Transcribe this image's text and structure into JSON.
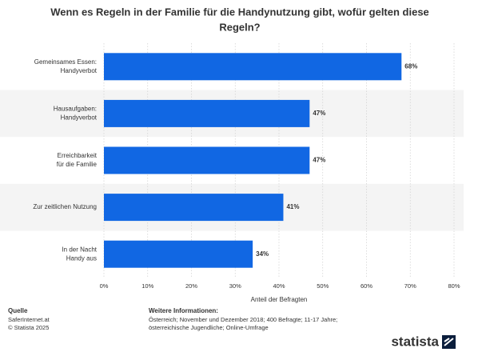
{
  "chart_data": {
    "type": "hbar",
    "title": [
      "Wenn es Regeln in der Familie für die Handynutzung gibt, wofür gelten diese",
      "Regeln?"
    ],
    "categories": [
      [
        "Gemeinsames Essen:",
        "Handyverbot"
      ],
      [
        "Hausaufgaben:",
        "Handyverbot"
      ],
      [
        "Erreichbarkeit",
        "für die Familie"
      ],
      [
        "Zur zeitlichen Nutzung"
      ],
      [
        "In der Nacht",
        "Handy aus"
      ]
    ],
    "values": [
      68,
      47,
      47,
      41,
      34
    ],
    "value_labels": [
      "68%",
      "47%",
      "47%",
      "41%",
      "34%"
    ],
    "color": "#1167e3",
    "xlim": [
      0,
      80
    ],
    "xticks": [
      {
        "value": 0,
        "label": "0%"
      },
      {
        "value": 10,
        "label": "10%"
      },
      {
        "value": 20,
        "label": "20%"
      },
      {
        "value": 30,
        "label": "30%"
      },
      {
        "value": 40,
        "label": "40%"
      },
      {
        "value": 50,
        "label": "50%"
      },
      {
        "value": 60,
        "label": "60%"
      },
      {
        "value": 70,
        "label": "70%"
      },
      {
        "value": 80,
        "label": "80%"
      }
    ],
    "xlabel": "Anteil der Befragten",
    "grid": true
  },
  "footer": {
    "source_title": "Quelle",
    "source": "SaferInternet.at",
    "copyright": "© Statista 2025",
    "info_title": "Weitere Informationen:",
    "info": [
      "Österreich; November und Dezember 2018; 400 Befragte; 11-17 Jahre;",
      "österreichische Jugendliche; Online-Umfrage"
    ],
    "logo": "statista"
  }
}
